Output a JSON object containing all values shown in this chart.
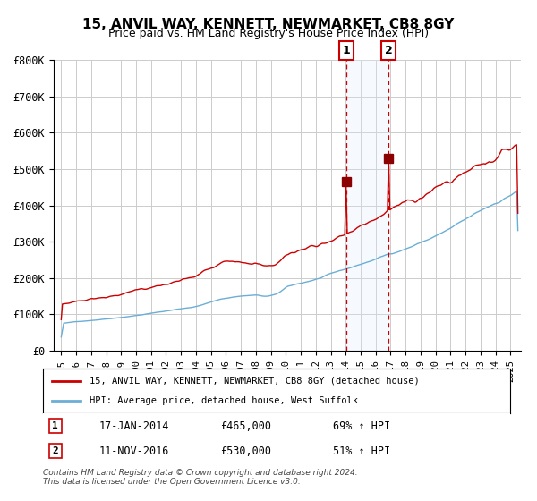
{
  "title": "15, ANVIL WAY, KENNETT, NEWMARKET, CB8 8GY",
  "subtitle": "Price paid vs. HM Land Registry's House Price Index (HPI)",
  "x_start_year": 1995,
  "x_end_year": 2025,
  "y_min": 0,
  "y_max": 800000,
  "y_ticks": [
    0,
    100000,
    200000,
    300000,
    400000,
    500000,
    600000,
    700000,
    800000
  ],
  "y_tick_labels": [
    "£0",
    "£100K",
    "£200K",
    "£300K",
    "£400K",
    "£500K",
    "£600K",
    "£700K",
    "£800K"
  ],
  "hpi_color": "#6baed6",
  "price_color": "#cc0000",
  "marker_color": "#8b0000",
  "vline_color": "#cc0000",
  "shade_color": "#ddeeff",
  "grid_color": "#cccccc",
  "bg_color": "#ffffff",
  "legend_box_color": "#ffffff",
  "annotation1": {
    "label": "1",
    "date_str": "17-JAN-2014",
    "price_str": "£465,000",
    "hpi_str": "69% ↑ HPI",
    "year": 2014.04
  },
  "annotation2": {
    "label": "2",
    "date_str": "11-NOV-2016",
    "price_str": "£530,000",
    "hpi_str": "51% ↑ HPI",
    "year": 2016.87
  },
  "legend1_text": "15, ANVIL WAY, KENNETT, NEWMARKET, CB8 8GY (detached house)",
  "legend2_text": "HPI: Average price, detached house, West Suffolk",
  "footer_text": "Contains HM Land Registry data © Crown copyright and database right 2024.\nThis data is licensed under the Open Government Licence v3.0.",
  "marker1_value": 465000,
  "marker2_value": 530000
}
